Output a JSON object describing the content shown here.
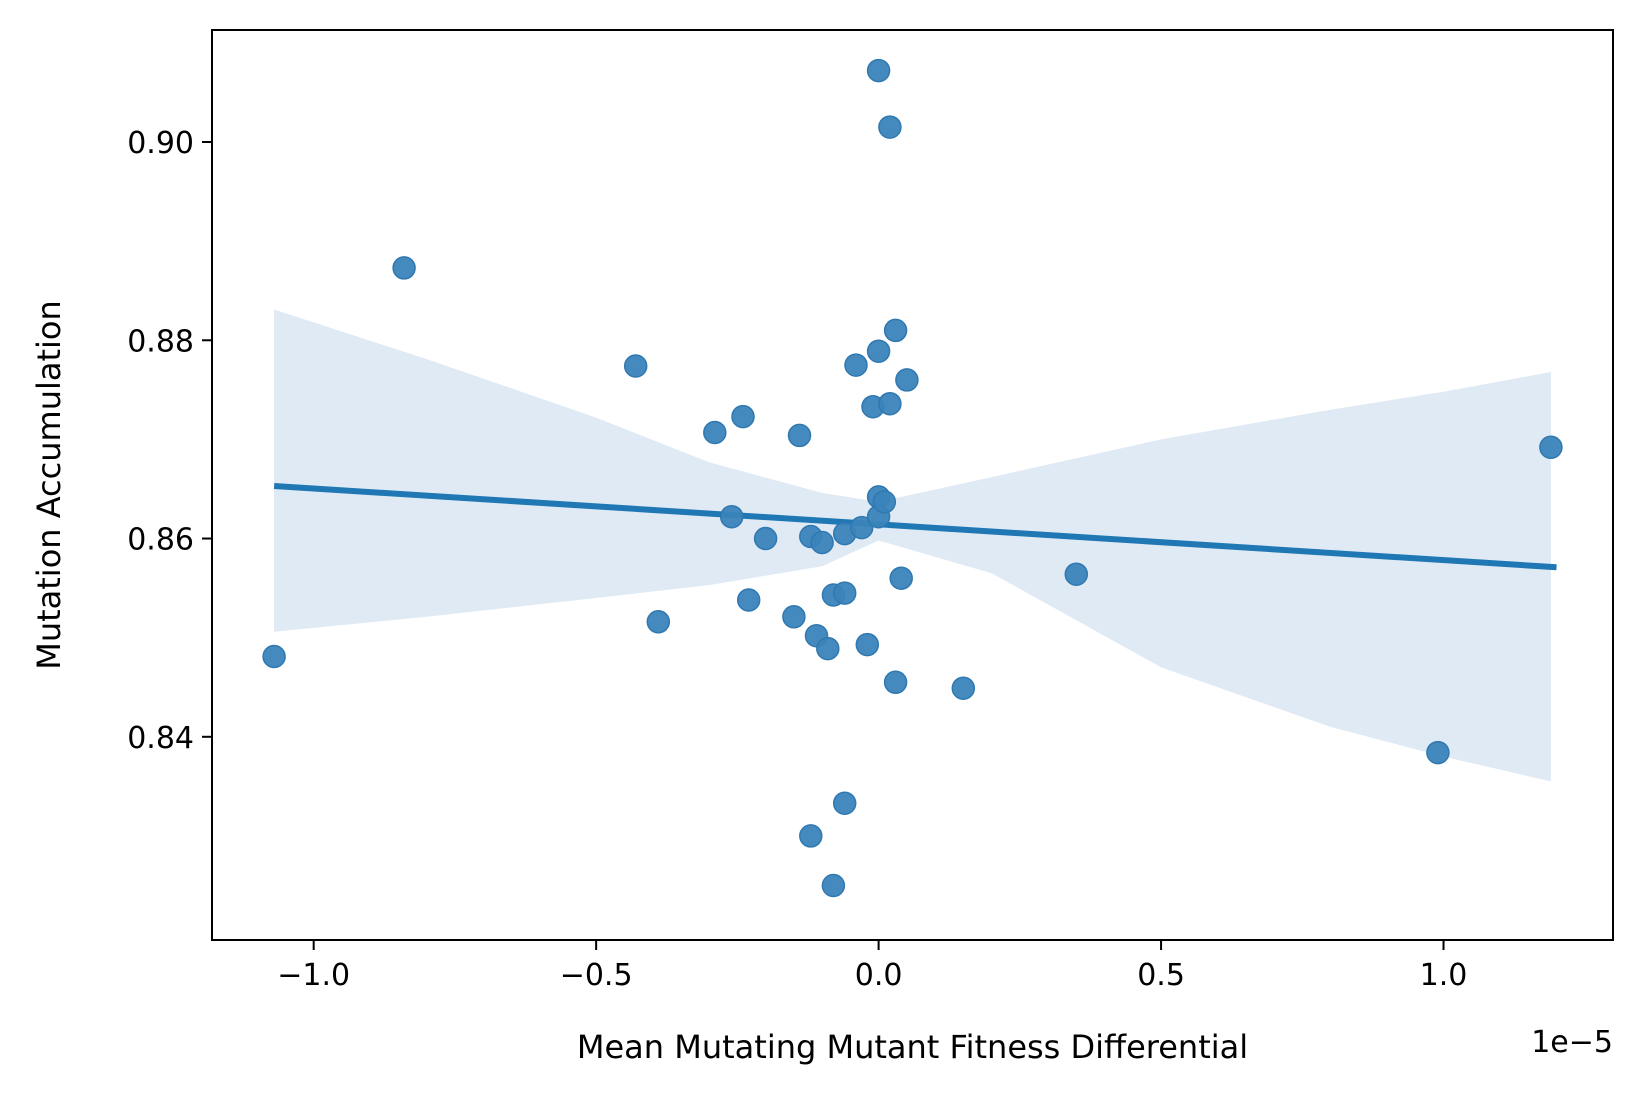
{
  "chart_data": {
    "type": "scatter",
    "title": "",
    "xlabel": "Mean Mutating Mutant Fitness Differential",
    "ylabel": "Mutation Accumulation",
    "x_offset_label": "1e−5",
    "xlim": [
      -1.18,
      1.3
    ],
    "ylim": [
      0.8195,
      0.9113
    ],
    "x_ticks": [
      -1.0,
      -0.5,
      0.0,
      0.5,
      1.0
    ],
    "x_tick_labels": [
      "−1.0",
      "−0.5",
      "0.0",
      "0.5",
      "1.0"
    ],
    "y_ticks": [
      0.84,
      0.86,
      0.88,
      0.9
    ],
    "y_tick_labels": [
      "0.84",
      "0.86",
      "0.88",
      "0.90"
    ],
    "grid": false,
    "legend": false,
    "point_color": "#3a84bb",
    "point_edge_color": "#2f78b0",
    "line_color": "#1f77b4",
    "band_color": "#dfeaf5",
    "points": [
      {
        "x": -1.07,
        "y": 0.8481
      },
      {
        "x": -0.84,
        "y": 0.8873
      },
      {
        "x": -0.43,
        "y": 0.8774
      },
      {
        "x": -0.39,
        "y": 0.8516
      },
      {
        "x": -0.29,
        "y": 0.8707
      },
      {
        "x": -0.26,
        "y": 0.8622
      },
      {
        "x": -0.24,
        "y": 0.8723
      },
      {
        "x": -0.23,
        "y": 0.8538
      },
      {
        "x": -0.2,
        "y": 0.86
      },
      {
        "x": -0.15,
        "y": 0.8521
      },
      {
        "x": -0.14,
        "y": 0.8704
      },
      {
        "x": -0.12,
        "y": 0.8602
      },
      {
        "x": -0.12,
        "y": 0.83
      },
      {
        "x": -0.11,
        "y": 0.8502
      },
      {
        "x": -0.1,
        "y": 0.8596
      },
      {
        "x": -0.09,
        "y": 0.8489
      },
      {
        "x": -0.08,
        "y": 0.8543
      },
      {
        "x": -0.08,
        "y": 0.825
      },
      {
        "x": -0.06,
        "y": 0.8545
      },
      {
        "x": -0.06,
        "y": 0.8605
      },
      {
        "x": -0.06,
        "y": 0.8333
      },
      {
        "x": -0.04,
        "y": 0.8775
      },
      {
        "x": -0.03,
        "y": 0.8611
      },
      {
        "x": -0.02,
        "y": 0.8493
      },
      {
        "x": -0.01,
        "y": 0.8733
      },
      {
        "x": 0.0,
        "y": 0.8789
      },
      {
        "x": 0.0,
        "y": 0.8622
      },
      {
        "x": 0.0,
        "y": 0.8642
      },
      {
        "x": 0.0,
        "y": 0.9072
      },
      {
        "x": 0.01,
        "y": 0.8637
      },
      {
        "x": 0.02,
        "y": 0.9015
      },
      {
        "x": 0.02,
        "y": 0.8736
      },
      {
        "x": 0.03,
        "y": 0.881
      },
      {
        "x": 0.03,
        "y": 0.8455
      },
      {
        "x": 0.04,
        "y": 0.856
      },
      {
        "x": 0.05,
        "y": 0.876
      },
      {
        "x": 0.15,
        "y": 0.8449
      },
      {
        "x": 0.35,
        "y": 0.8564
      },
      {
        "x": 0.99,
        "y": 0.8384
      },
      {
        "x": 1.19,
        "y": 0.8692
      }
    ],
    "regression_line": {
      "x": [
        -1.07,
        1.2
      ],
      "y": [
        0.8653,
        0.8571
      ]
    },
    "confidence_band": {
      "x": [
        -1.07,
        -0.8,
        -0.5,
        -0.3,
        -0.1,
        0.0,
        0.2,
        0.5,
        0.8,
        1.0,
        1.19
      ],
      "upper": [
        0.8831,
        0.8781,
        0.8722,
        0.8677,
        0.8646,
        0.8637,
        0.8662,
        0.87,
        0.873,
        0.8748,
        0.8768
      ],
      "lower": [
        0.8506,
        0.8521,
        0.854,
        0.8553,
        0.8572,
        0.8598,
        0.8565,
        0.847,
        0.841,
        0.838,
        0.8355
      ]
    }
  }
}
